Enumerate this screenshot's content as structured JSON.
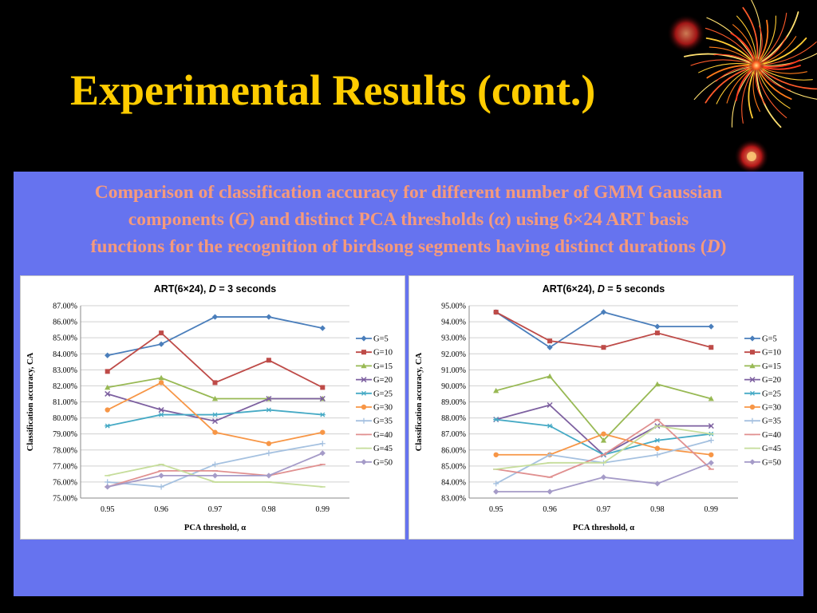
{
  "slide": {
    "title": "Experimental Results (cont.)",
    "caption": {
      "line1": "Comparison of classification accuracy for different number of GMM Gaussian",
      "line2_a": "components (",
      "line2_g": "G",
      "line2_b": ") and distinct PCA thresholds (",
      "line2_alpha": "α",
      "line2_c": ") using 6×24 ART basis",
      "line3_a": "functions for the recognition of birdsong segments having distinct durations (",
      "line3_d": "D",
      "line3_b": ")"
    }
  },
  "colors": {
    "title": "#ffcc00",
    "caption": "#f59a7c",
    "panel": "#6673ef",
    "background": "#000000"
  },
  "chart_data": [
    {
      "type": "line",
      "title_prefix": "ART(6×24), ",
      "title_var": "D",
      "title_suffix": " = 3 seconds",
      "xlabel": "PCA threshold, α",
      "ylabel": "Classification accuracy, CA",
      "categories": [
        "0.95",
        "0.96",
        "0.97",
        "0.98",
        "0.99"
      ],
      "ylim": [
        75.0,
        87.0
      ],
      "yticks": [
        "75.00%",
        "76.00%",
        "77.00%",
        "78.00%",
        "79.00%",
        "80.00%",
        "81.00%",
        "82.00%",
        "83.00%",
        "84.00%",
        "85.00%",
        "86.00%",
        "87.00%"
      ],
      "grid": true,
      "legend": "right",
      "series": [
        {
          "name": "G=5",
          "color": "#4a7ebb",
          "marker": "diamond",
          "values": [
            83.9,
            84.6,
            86.3,
            86.3,
            85.6
          ]
        },
        {
          "name": "G=10",
          "color": "#be4b48",
          "marker": "square",
          "values": [
            82.9,
            85.3,
            82.2,
            83.6,
            81.9
          ]
        },
        {
          "name": "G=15",
          "color": "#98b954",
          "marker": "triangle",
          "values": [
            81.9,
            82.5,
            81.2,
            81.2,
            81.2
          ]
        },
        {
          "name": "G=20",
          "color": "#7d60a0",
          "marker": "x",
          "values": [
            81.5,
            80.5,
            79.8,
            81.2,
            81.2
          ]
        },
        {
          "name": "G=25",
          "color": "#46aac5",
          "marker": "star",
          "values": [
            79.5,
            80.2,
            80.2,
            80.5,
            80.2
          ]
        },
        {
          "name": "G=30",
          "color": "#f79646",
          "marker": "circle",
          "values": [
            80.5,
            82.2,
            79.1,
            78.4,
            79.1
          ]
        },
        {
          "name": "G=35",
          "color": "#a5c1e0",
          "marker": "plus",
          "values": [
            76.0,
            75.7,
            77.1,
            77.8,
            78.4
          ]
        },
        {
          "name": "G=40",
          "color": "#e09090",
          "marker": "dash",
          "values": [
            75.7,
            76.7,
            76.7,
            76.4,
            77.1
          ]
        },
        {
          "name": "G=45",
          "color": "#c6dd9b",
          "marker": "dash",
          "values": [
            76.4,
            77.1,
            76.0,
            76.0,
            75.7
          ]
        },
        {
          "name": "G=50",
          "color": "#a59bc8",
          "marker": "diamond",
          "values": [
            75.7,
            76.4,
            76.4,
            76.4,
            77.8
          ]
        }
      ]
    },
    {
      "type": "line",
      "title_prefix": "ART(6×24), ",
      "title_var": "D",
      "title_suffix": " = 5 seconds",
      "xlabel": "PCA threshold, α",
      "ylabel": "Classification accuracy, CA",
      "categories": [
        "0.95",
        "0.96",
        "0.97",
        "0.98",
        "0.99"
      ],
      "ylim": [
        83.0,
        95.0
      ],
      "yticks": [
        "83.00%",
        "84.00%",
        "85.00%",
        "86.00%",
        "87.00%",
        "88.00%",
        "89.00%",
        "90.00%",
        "91.00%",
        "92.00%",
        "93.00%",
        "94.00%",
        "95.00%"
      ],
      "grid": true,
      "legend": "right",
      "series": [
        {
          "name": "G=5",
          "color": "#4a7ebb",
          "marker": "diamond",
          "values": [
            94.6,
            92.4,
            94.6,
            93.7,
            93.7
          ]
        },
        {
          "name": "G=10",
          "color": "#be4b48",
          "marker": "square",
          "values": [
            94.6,
            92.8,
            92.4,
            93.3,
            92.4
          ]
        },
        {
          "name": "G=15",
          "color": "#98b954",
          "marker": "triangle",
          "values": [
            89.7,
            90.6,
            86.6,
            90.1,
            89.2
          ]
        },
        {
          "name": "G=20",
          "color": "#7d60a0",
          "marker": "x",
          "values": [
            87.9,
            88.8,
            85.7,
            87.5,
            87.5
          ]
        },
        {
          "name": "G=25",
          "color": "#46aac5",
          "marker": "star",
          "values": [
            87.9,
            87.5,
            85.7,
            86.6,
            87.0
          ]
        },
        {
          "name": "G=30",
          "color": "#f79646",
          "marker": "circle",
          "values": [
            85.7,
            85.7,
            87.0,
            86.1,
            85.7
          ]
        },
        {
          "name": "G=35",
          "color": "#a5c1e0",
          "marker": "plus",
          "values": [
            83.9,
            85.7,
            85.2,
            85.7,
            86.6
          ]
        },
        {
          "name": "G=40",
          "color": "#e09090",
          "marker": "dash",
          "values": [
            84.8,
            84.3,
            85.7,
            87.9,
            84.8
          ]
        },
        {
          "name": "G=45",
          "color": "#c6dd9b",
          "marker": "dash",
          "values": [
            84.8,
            85.2,
            85.2,
            87.5,
            87.0
          ]
        },
        {
          "name": "G=50",
          "color": "#a59bc8",
          "marker": "diamond",
          "values": [
            83.4,
            83.4,
            84.3,
            83.9,
            85.2
          ]
        }
      ]
    }
  ]
}
